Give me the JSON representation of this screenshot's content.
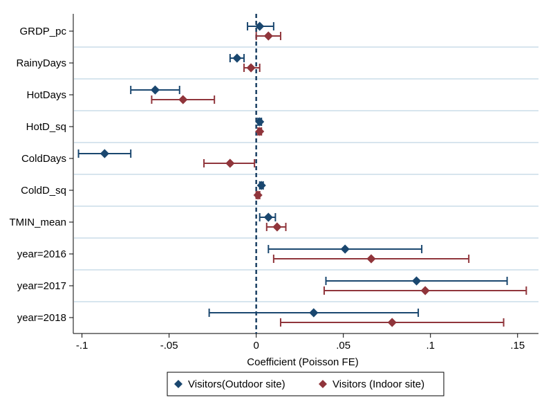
{
  "chart_data": {
    "type": "coefficient-plot",
    "xlabel": "Coefficient (Poisson FE)",
    "xlim": [
      -0.105,
      0.162
    ],
    "x_ticks": [
      -0.1,
      -0.05,
      0,
      0.05,
      0.1,
      0.15
    ],
    "x_tick_labels": [
      "-.1",
      "-.05",
      "0",
      ".05",
      ".1",
      ".15"
    ],
    "reference_line": 0,
    "categories": [
      "GRDP_pc",
      "RainyDays",
      "HotDays",
      "HotD_sq",
      "ColdDays",
      "ColdD_sq",
      "TMIN_mean",
      "year=2016",
      "year=2017",
      "year=2018"
    ],
    "series": [
      {
        "name": "Visitors(Outdoor site)",
        "color": "#1a476f",
        "estimates": [
          0.002,
          -0.011,
          -0.058,
          0.002,
          -0.087,
          0.003,
          0.007,
          0.051,
          0.092,
          0.033
        ],
        "ci_low": [
          -0.005,
          -0.015,
          -0.072,
          0.001,
          -0.102,
          0.002,
          0.002,
          0.007,
          0.04,
          -0.027
        ],
        "ci_high": [
          0.01,
          -0.007,
          -0.044,
          0.003,
          -0.072,
          0.004,
          0.011,
          0.095,
          0.144,
          0.093
        ]
      },
      {
        "name": "Visitors (Indoor site)",
        "color": "#90353b",
        "estimates": [
          0.007,
          -0.003,
          -0.042,
          0.002,
          -0.015,
          0.001,
          0.012,
          0.066,
          0.097,
          0.078
        ],
        "ci_low": [
          0.0,
          -0.007,
          -0.06,
          0.001,
          -0.03,
          0.0,
          0.006,
          0.01,
          0.039,
          0.014
        ],
        "ci_high": [
          0.014,
          0.002,
          -0.024,
          0.003,
          -0.001,
          0.002,
          0.017,
          0.122,
          0.155,
          0.142
        ]
      }
    ],
    "legend_position": "bottom"
  }
}
